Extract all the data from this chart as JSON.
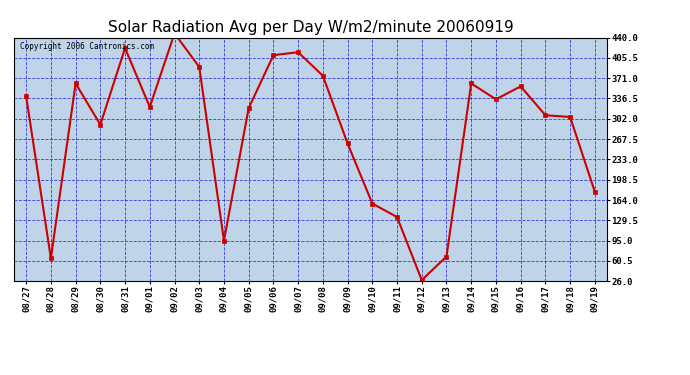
{
  "title": "Solar Radiation Avg per Day W/m2/minute 20060919",
  "copyright_text": "Copyright 2006 Cantronics.com",
  "dates": [
    "08/27",
    "08/28",
    "08/29",
    "08/30",
    "08/31",
    "09/01",
    "09/02",
    "09/03",
    "09/04",
    "09/05",
    "09/06",
    "09/07",
    "09/08",
    "09/09",
    "09/10",
    "09/11",
    "09/12",
    "09/13",
    "09/14",
    "09/15",
    "09/16",
    "09/17",
    "09/18",
    "09/19"
  ],
  "values": [
    340,
    65,
    362,
    292,
    422,
    322,
    447,
    390,
    95,
    320,
    410,
    415,
    375,
    260,
    158,
    135,
    28,
    68,
    362,
    335,
    357,
    308,
    305,
    178
  ],
  "line_color": "#cc0000",
  "marker_color": "#cc0000",
  "bg_color": "#bfd4e8",
  "grid_color": "#0000cc",
  "title_fontsize": 11,
  "yticks": [
    26.0,
    60.5,
    95.0,
    129.5,
    164.0,
    198.5,
    233.0,
    267.5,
    302.0,
    336.5,
    371.0,
    405.5,
    440.0
  ],
  "ymin": 26.0,
  "ymax": 440.0,
  "fig_width": 6.9,
  "fig_height": 3.75,
  "dpi": 100
}
